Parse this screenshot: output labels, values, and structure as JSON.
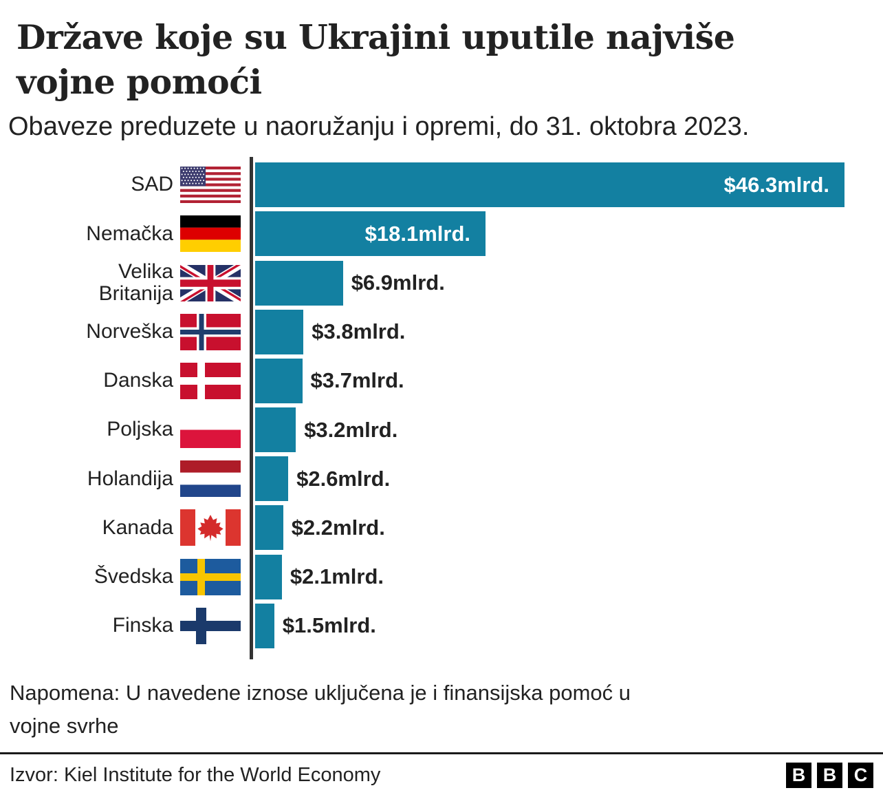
{
  "header": {
    "title_lines": [
      "Države koje su Ukrajini uputile najviše",
      "vojne pomoći"
    ],
    "subtitle": "Obaveze preduzete u naoružanju i opremi, do 31. oktobra 2023."
  },
  "chart_data": {
    "type": "bar",
    "orientation": "horizontal",
    "title": "Države koje su Ukrajini uputile najviše vojne pomoći",
    "subtitle": "Obaveze preduzete u naoružanju i opremi, do 31. oktobra 2023.",
    "unit": "mlrd. USD",
    "xlim": [
      0,
      46.3
    ],
    "grid": false,
    "bar_color": "#1380A1",
    "axis_color": "#333333",
    "categories": [
      "SAD",
      "Nemačka",
      "Velika Britanija",
      "Norveška",
      "Danska",
      "Poljska",
      "Holandija",
      "Kanada",
      "Švedska",
      "Finska"
    ],
    "values": [
      46.3,
      18.1,
      6.9,
      3.8,
      3.7,
      3.2,
      2.6,
      2.2,
      2.1,
      1.5
    ],
    "value_labels": [
      "$46.3mlrd.",
      "$18.1mlrd.",
      "$6.9mlrd.",
      "$3.8mlrd.",
      "$3.7mlrd.",
      "$3.2mlrd.",
      "$2.6mlrd.",
      "$2.2mlrd.",
      "$2.1mlrd.",
      "$1.5mlrd."
    ],
    "value_label_inside": [
      true,
      true,
      false,
      false,
      false,
      false,
      false,
      false,
      false,
      false
    ],
    "flag_icons": [
      "usa-flag-icon",
      "germany-flag-icon",
      "uk-flag-icon",
      "norway-flag-icon",
      "denmark-flag-icon",
      "poland-flag-icon",
      "netherlands-flag-icon",
      "canada-flag-icon",
      "sweden-flag-icon",
      "finland-flag-icon"
    ]
  },
  "note_lines": [
    "Napomena: U navedene iznose uključena je i finansijska pomoć u",
    "vojne svrhe"
  ],
  "footer": {
    "source": "Izvor: Kiel Institute for the World Economy",
    "logo_letters": [
      "B",
      "B",
      "C"
    ]
  }
}
